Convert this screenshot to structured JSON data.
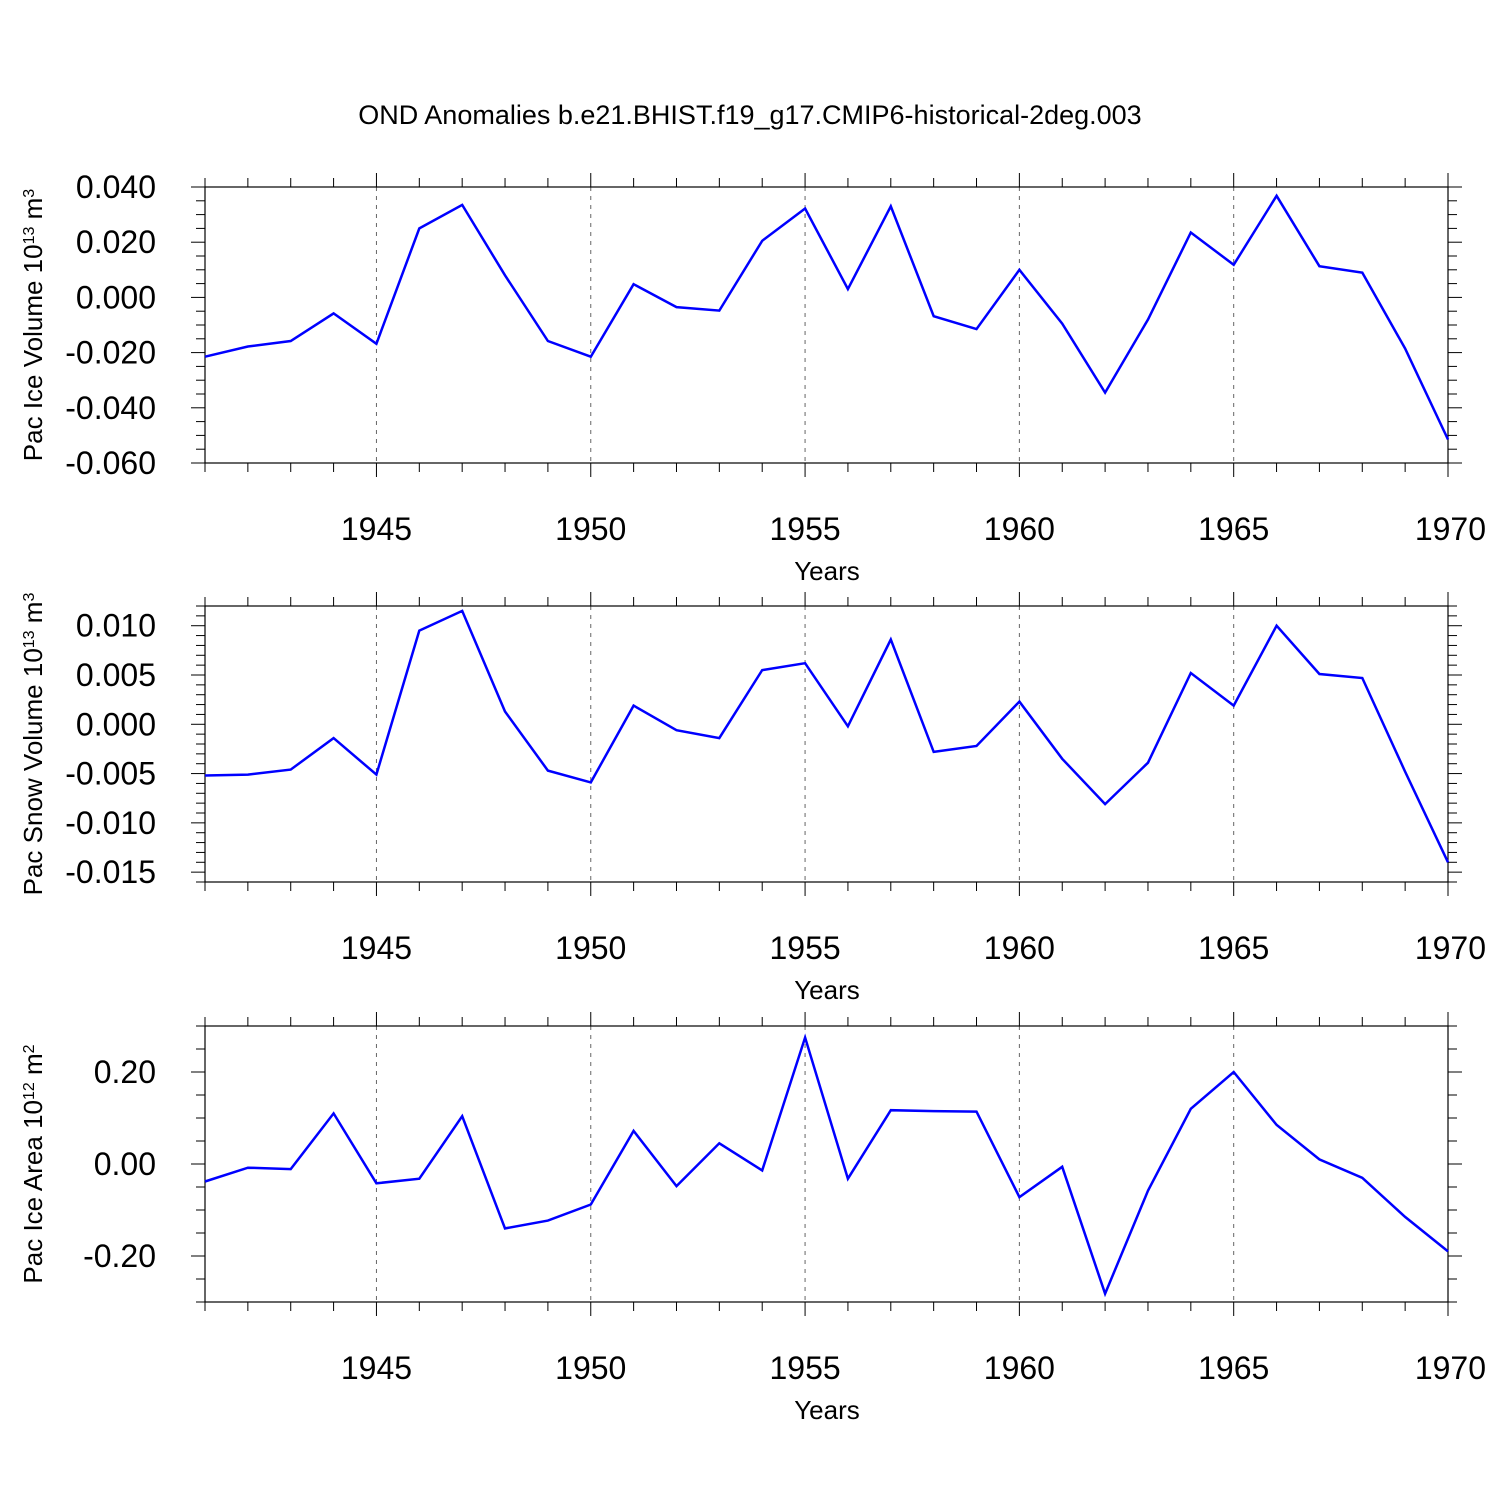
{
  "chart_data": [
    {
      "type": "line",
      "title": "OND Anomalies b.e21.BHIST.f19_g17.CMIP6-historical-2deg.003",
      "xlabel": "Years",
      "ylabel": {
        "text": "Pac Ice Volume 10",
        "sup": "13",
        "unit": " m",
        "unit_sup": "3"
      },
      "xlim": [
        1941,
        1970
      ],
      "ylim": [
        -0.06,
        0.04
      ],
      "yticks": [
        -0.06,
        -0.04,
        -0.02,
        0.0,
        0.02,
        0.04
      ],
      "ytick_labels": [
        "-0.060",
        "-0.040",
        "-0.020",
        "0.000",
        "0.020",
        "0.040"
      ],
      "yminor_step": 0.005,
      "xticks": [
        1945,
        1950,
        1955,
        1960,
        1965,
        1970
      ],
      "xtick_labels": [
        "1945",
        "1950",
        "1955",
        "1960",
        "1965",
        "1970"
      ],
      "series": [
        {
          "name": "Pac Ice Volume",
          "color": "#0000ff",
          "x": [
            1941,
            1942,
            1943,
            1944,
            1945,
            1946,
            1947,
            1948,
            1949,
            1950,
            1951,
            1952,
            1953,
            1954,
            1955,
            1956,
            1957,
            1958,
            1959,
            1960,
            1961,
            1962,
            1963,
            1964,
            1965,
            1966,
            1967,
            1968,
            1969,
            1970
          ],
          "values": [
            -0.0215,
            -0.0178,
            -0.0158,
            -0.0058,
            -0.0168,
            0.025,
            0.0335,
            0.008,
            -0.0158,
            -0.0215,
            0.0048,
            -0.0035,
            -0.0048,
            0.0205,
            0.0322,
            0.003,
            0.033,
            -0.0068,
            -0.0115,
            0.01,
            -0.0095,
            -0.0345,
            -0.008,
            0.0235,
            0.0118,
            0.0368,
            0.0113,
            0.009,
            -0.0185,
            -0.0515
          ]
        }
      ]
    },
    {
      "type": "line",
      "title": "",
      "xlabel": "Years",
      "ylabel": {
        "text": "Pac Snow Volume 10",
        "sup": "13",
        "unit": " m",
        "unit_sup": "3"
      },
      "xlim": [
        1941,
        1970
      ],
      "ylim": [
        -0.016,
        0.012
      ],
      "yticks": [
        -0.015,
        -0.01,
        -0.005,
        0.0,
        0.005,
        0.01
      ],
      "ytick_labels": [
        "-0.015",
        "-0.010",
        "-0.005",
        "0.000",
        "0.005",
        "0.010"
      ],
      "yminor_step": 0.001,
      "xticks": [
        1945,
        1950,
        1955,
        1960,
        1965,
        1970
      ],
      "xtick_labels": [
        "1945",
        "1950",
        "1955",
        "1960",
        "1965",
        "1970"
      ],
      "series": [
        {
          "name": "Pac Snow Volume",
          "color": "#0000ff",
          "x": [
            1941,
            1942,
            1943,
            1944,
            1945,
            1946,
            1947,
            1948,
            1949,
            1950,
            1951,
            1952,
            1953,
            1954,
            1955,
            1956,
            1957,
            1958,
            1959,
            1960,
            1961,
            1962,
            1963,
            1964,
            1965,
            1966,
            1967,
            1968,
            1969,
            1970
          ],
          "values": [
            -0.0052,
            -0.0051,
            -0.0046,
            -0.0014,
            -0.0051,
            0.0095,
            0.0115,
            0.0013,
            -0.0047,
            -0.0059,
            0.0019,
            -0.0006,
            -0.0014,
            0.0055,
            0.0062,
            -0.0002,
            0.0086,
            -0.0028,
            -0.0022,
            0.0023,
            -0.0035,
            -0.0081,
            -0.0039,
            0.0052,
            0.0019,
            0.01,
            0.0051,
            0.0047,
            -0.0048,
            -0.014
          ]
        }
      ]
    },
    {
      "type": "line",
      "title": "",
      "xlabel": "Years",
      "ylabel": {
        "text": "Pac Ice Area 10",
        "sup": "12",
        "unit": " m",
        "unit_sup": "2"
      },
      "xlim": [
        1941,
        1970
      ],
      "ylim": [
        -0.3,
        0.3
      ],
      "yticks": [
        -0.2,
        0.0,
        0.2
      ],
      "ytick_labels": [
        "-0.20",
        "0.00",
        "0.20"
      ],
      "yminor_step": 0.05,
      "xticks": [
        1945,
        1950,
        1955,
        1960,
        1965,
        1970
      ],
      "xtick_labels": [
        "1945",
        "1950",
        "1955",
        "1960",
        "1965",
        "1970"
      ],
      "series": [
        {
          "name": "Pac Ice Area",
          "color": "#0000ff",
          "x": [
            1941,
            1942,
            1943,
            1944,
            1945,
            1946,
            1947,
            1948,
            1949,
            1950,
            1951,
            1952,
            1953,
            1954,
            1955,
            1956,
            1957,
            1958,
            1959,
            1960,
            1961,
            1962,
            1963,
            1964,
            1965,
            1966,
            1967,
            1968,
            1969,
            1970
          ],
          "values": [
            -0.038,
            -0.008,
            -0.011,
            0.11,
            -0.042,
            -0.032,
            0.104,
            -0.14,
            -0.123,
            -0.088,
            0.072,
            -0.048,
            0.045,
            -0.014,
            0.275,
            -0.032,
            0.117,
            0.115,
            0.114,
            -0.072,
            -0.006,
            -0.282,
            -0.058,
            0.12,
            0.2,
            0.085,
            0.01,
            -0.03,
            -0.115,
            -0.19
          ]
        }
      ]
    }
  ]
}
